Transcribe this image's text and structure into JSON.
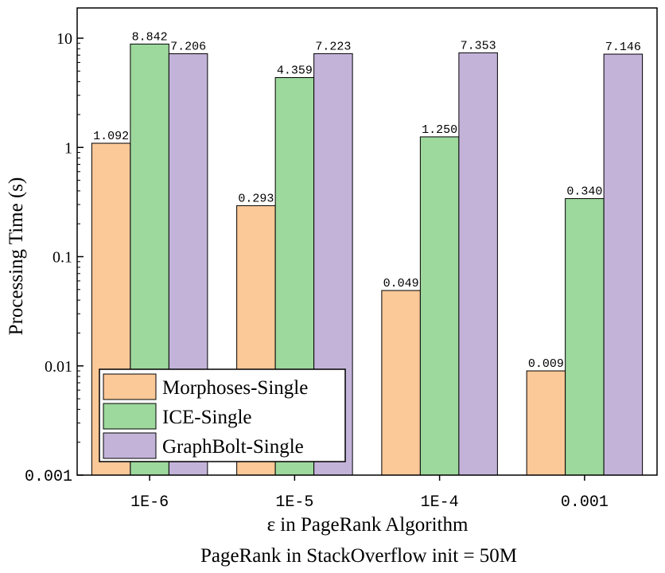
{
  "chart_data": {
    "type": "bar",
    "title": "",
    "caption": "PageRank in StackOverflow init = 50M",
    "xlabel": "ε in PageRank Algorithm",
    "ylabel": "Processing Time (s)",
    "yscale": "log",
    "ylim": [
      0.001,
      20
    ],
    "yticks": [
      0.001,
      0.01,
      0.1,
      1,
      10
    ],
    "ytick_labels": [
      "0.001",
      "0.01",
      "0.1",
      "1",
      "10"
    ],
    "categories": [
      "1E-6",
      "1E-5",
      "1E-4",
      "0.001"
    ],
    "legend_position": "bottom-left",
    "series": [
      {
        "name": "Morphoses-Single",
        "color": "#FBC898",
        "values": [
          1.092,
          0.293,
          0.049,
          0.009
        ],
        "labels": [
          "1.092",
          "0.293",
          "0.049",
          "0.009"
        ]
      },
      {
        "name": "ICE-Single",
        "color": "#9DD89C",
        "values": [
          8.842,
          4.359,
          1.25,
          0.34
        ],
        "labels": [
          "8.842",
          "4.359",
          "1.250",
          "0.340"
        ]
      },
      {
        "name": "GraphBolt-Single",
        "color": "#C3B3D9",
        "values": [
          7.206,
          7.223,
          7.353,
          7.146
        ],
        "labels": [
          "7.206",
          "7.223",
          "7.353",
          "7.146"
        ]
      }
    ]
  }
}
